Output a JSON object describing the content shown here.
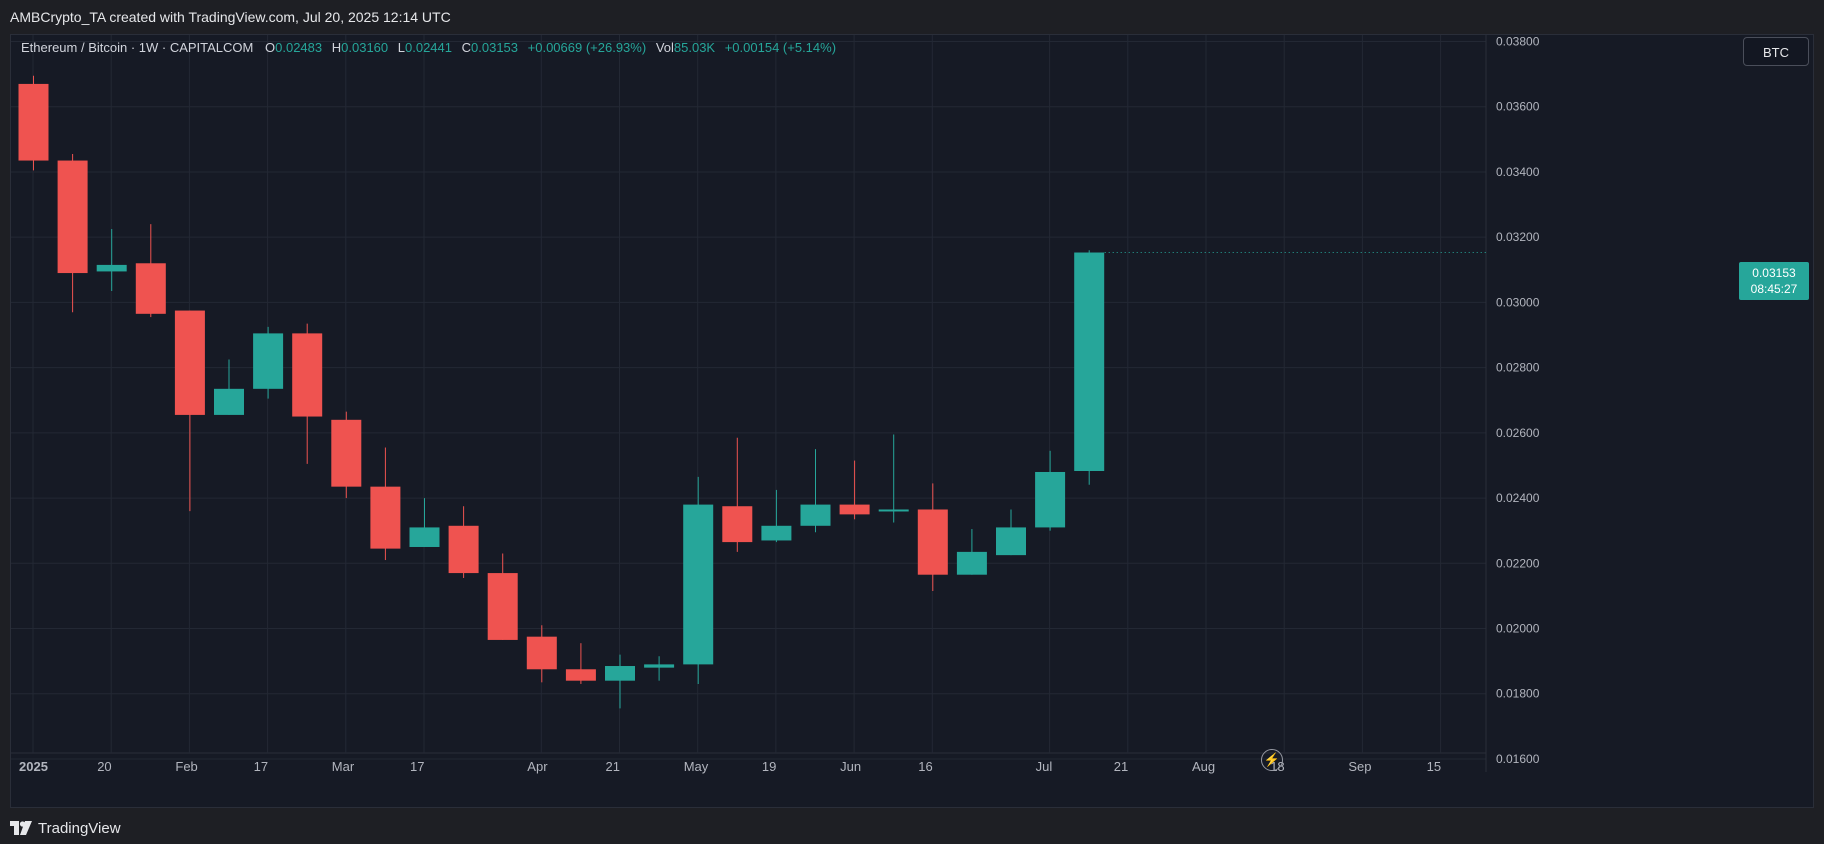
{
  "header": {
    "caption": "AMBCrypto_TA created with TradingView.com, Jul 20, 2025 12:14 UTC"
  },
  "legend": {
    "symbol": "Ethereum / Bitcoin · 1W · CAPITALCOM",
    "open_label": "O",
    "open": "0.02483",
    "high_label": "H",
    "high": "0.03160",
    "low_label": "L",
    "low": "0.02441",
    "close_label": "C",
    "close": "0.03153",
    "change": "+0.00669 (+26.93%)",
    "vol_label": "Vol",
    "vol": "85.03K",
    "vol_change": "+0.00154 (+5.14%)"
  },
  "currency_button": "BTC",
  "last_price": {
    "value": "0.03153",
    "countdown": "08:45:27"
  },
  "footer": {
    "brand": "TradingView"
  },
  "colors": {
    "up": "#26a69a",
    "down": "#ef5350",
    "background": "#161a25",
    "grid": "#232834",
    "text": "#d1d4dc"
  },
  "icons": [
    "tradingview-logo-icon",
    "lightning-icon"
  ],
  "chart_data": {
    "type": "candlestick",
    "symbol": "Ethereum / Bitcoin",
    "interval": "1W",
    "ylim": [
      0.0156,
      0.0382
    ],
    "y_ticks": [
      "0.01600",
      "0.01800",
      "0.02000",
      "0.02200",
      "0.02400",
      "0.02600",
      "0.02800",
      "0.03000",
      "0.03200",
      "0.03400",
      "0.03600",
      "0.03800"
    ],
    "x_tick_labels": [
      {
        "label": "2025",
        "week": 0,
        "bold": true
      },
      {
        "label": "20",
        "week": 2
      },
      {
        "label": "Feb",
        "week": 4
      },
      {
        "label": "17",
        "week": 6
      },
      {
        "label": "Mar",
        "week": 8
      },
      {
        "label": "17",
        "week": 10
      },
      {
        "label": "Apr",
        "week": 13
      },
      {
        "label": "21",
        "week": 15
      },
      {
        "label": "May",
        "week": 17
      },
      {
        "label": "19",
        "week": 19
      },
      {
        "label": "Jun",
        "week": 21
      },
      {
        "label": "16",
        "week": 23
      },
      {
        "label": "Jul",
        "week": 26
      },
      {
        "label": "21",
        "week": 28
      },
      {
        "label": "Aug",
        "week": 30
      },
      {
        "label": "18",
        "week": 32
      },
      {
        "label": "Sep",
        "week": 34
      },
      {
        "label": "15",
        "week": 36
      }
    ],
    "candles": [
      {
        "o": 0.0367,
        "h": 0.03695,
        "l": 0.03405,
        "c": 0.03435
      },
      {
        "o": 0.03435,
        "h": 0.03455,
        "l": 0.0297,
        "c": 0.0309
      },
      {
        "o": 0.03095,
        "h": 0.03225,
        "l": 0.03035,
        "c": 0.03115
      },
      {
        "o": 0.0312,
        "h": 0.0324,
        "l": 0.02955,
        "c": 0.02965
      },
      {
        "o": 0.02975,
        "h": 0.02975,
        "l": 0.0236,
        "c": 0.02655
      },
      {
        "o": 0.02655,
        "h": 0.02825,
        "l": 0.02655,
        "c": 0.02735
      },
      {
        "o": 0.02735,
        "h": 0.02925,
        "l": 0.02705,
        "c": 0.02905
      },
      {
        "o": 0.02905,
        "h": 0.02935,
        "l": 0.02505,
        "c": 0.0265
      },
      {
        "o": 0.0264,
        "h": 0.02665,
        "l": 0.024,
        "c": 0.02435
      },
      {
        "o": 0.02435,
        "h": 0.02555,
        "l": 0.0221,
        "c": 0.02245
      },
      {
        "o": 0.0225,
        "h": 0.024,
        "l": 0.0225,
        "c": 0.0231
      },
      {
        "o": 0.02315,
        "h": 0.02375,
        "l": 0.02155,
        "c": 0.0217
      },
      {
        "o": 0.0217,
        "h": 0.0223,
        "l": 0.01965,
        "c": 0.01965
      },
      {
        "o": 0.01975,
        "h": 0.0201,
        "l": 0.01835,
        "c": 0.01875
      },
      {
        "o": 0.01875,
        "h": 0.01955,
        "l": 0.0183,
        "c": 0.0184
      },
      {
        "o": 0.0184,
        "h": 0.0192,
        "l": 0.01755,
        "c": 0.01885
      },
      {
        "o": 0.0188,
        "h": 0.01915,
        "l": 0.0184,
        "c": 0.0189
      },
      {
        "o": 0.0189,
        "h": 0.02465,
        "l": 0.0183,
        "c": 0.0238
      },
      {
        "o": 0.02375,
        "h": 0.02585,
        "l": 0.02235,
        "c": 0.02265
      },
      {
        "o": 0.0227,
        "h": 0.02425,
        "l": 0.02265,
        "c": 0.02315
      },
      {
        "o": 0.02315,
        "h": 0.0255,
        "l": 0.02295,
        "c": 0.0238
      },
      {
        "o": 0.0238,
        "h": 0.02515,
        "l": 0.02335,
        "c": 0.0235
      },
      {
        "o": 0.0236,
        "h": 0.02595,
        "l": 0.02325,
        "c": 0.02365
      },
      {
        "o": 0.02365,
        "h": 0.02445,
        "l": 0.02115,
        "c": 0.02165
      },
      {
        "o": 0.02165,
        "h": 0.02305,
        "l": 0.02165,
        "c": 0.02235
      },
      {
        "o": 0.02225,
        "h": 0.02365,
        "l": 0.02225,
        "c": 0.0231
      },
      {
        "o": 0.0231,
        "h": 0.02545,
        "l": 0.023,
        "c": 0.0248
      },
      {
        "o": 0.02483,
        "h": 0.0316,
        "l": 0.02441,
        "c": 0.03153
      }
    ]
  }
}
